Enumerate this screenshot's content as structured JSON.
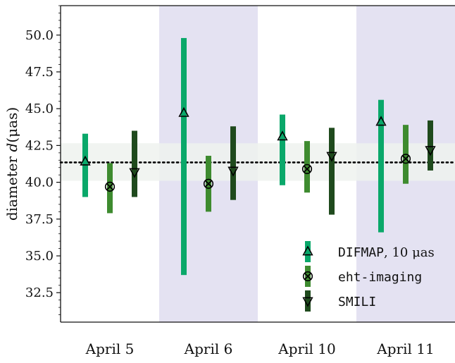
{
  "chart_data": {
    "type": "scatter",
    "ylabel_prefix": "diameter ",
    "ylabel_var": "d",
    "ylabel_unit": "(μas)",
    "ylim": [
      30.5,
      52.0
    ],
    "yticks": [
      "32.5",
      "35.0",
      "37.5",
      "40.0",
      "42.5",
      "45.0",
      "47.5",
      "50.0"
    ],
    "ytick_values": [
      32.5,
      35.0,
      37.5,
      40.0,
      42.5,
      45.0,
      47.5,
      50.0
    ],
    "categories": [
      "April 5",
      "April 6",
      "April 10",
      "April 11"
    ],
    "shaded_categories": [
      "April 6",
      "April 11"
    ],
    "reference_line": 41.35,
    "reference_band": [
      40.1,
      42.65
    ],
    "series": [
      {
        "name": "DIFMAP, 10 μas",
        "name_mono": "DIFMAP",
        "name_rest": ", 10 μas",
        "marker": "triangle-up",
        "color": "#0aa86a",
        "values": [
          41.4,
          44.7,
          43.1,
          44.1
        ],
        "lower": [
          39.0,
          33.7,
          39.8,
          36.6
        ],
        "upper": [
          43.3,
          49.8,
          44.6,
          45.6
        ]
      },
      {
        "name": "eht-imaging",
        "name_mono": "eht-imaging",
        "name_rest": "",
        "marker": "x-circle",
        "color": "#3e8b2f",
        "values": [
          39.7,
          39.9,
          40.9,
          41.6
        ],
        "lower": [
          37.9,
          38.0,
          39.3,
          39.9
        ],
        "upper": [
          41.3,
          41.8,
          42.8,
          43.9
        ]
      },
      {
        "name": "SMILI",
        "name_mono": "SMILI",
        "name_rest": "",
        "marker": "triangle-down",
        "color": "#1f4a1d",
        "values": [
          40.7,
          40.8,
          41.8,
          42.2
        ],
        "lower": [
          39.0,
          38.8,
          37.8,
          40.8
        ],
        "upper": [
          43.5,
          43.8,
          43.7,
          44.2
        ]
      }
    ],
    "grid": false,
    "legend_position": "lower-right"
  },
  "colors": {
    "shade": "#e4e2f2",
    "band": "#eef2ee",
    "axis": "#111111"
  }
}
